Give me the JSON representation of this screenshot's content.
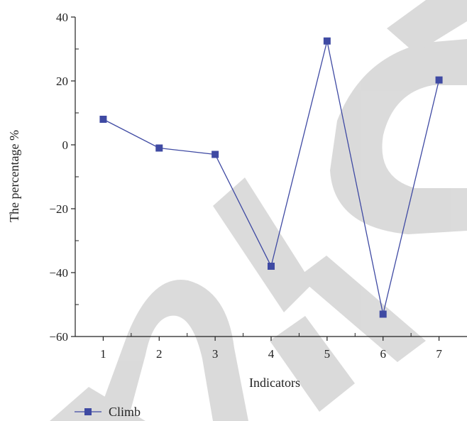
{
  "chart_data": {
    "type": "line",
    "title": "",
    "xlabel": "Indicators",
    "ylabel": "The percentage %",
    "x": [
      1,
      2,
      3,
      4,
      5,
      6,
      7
    ],
    "xticks": [
      "1",
      "2",
      "3",
      "4",
      "5",
      "6",
      "7"
    ],
    "xlim": [
      0.5,
      7.5
    ],
    "ylim": [
      -60,
      40
    ],
    "yticks": [
      "-60",
      "-40",
      "-20",
      "0",
      "20",
      "40"
    ],
    "series": [
      {
        "name": "Climb",
        "values": [
          8,
          -1,
          -3,
          -38,
          32.5,
          -53,
          20.3
        ],
        "color": "#3f4aa3",
        "marker": "square"
      }
    ],
    "legend": {
      "position": "bottom-left"
    },
    "grid": false,
    "watermark": "RETRACTED"
  }
}
